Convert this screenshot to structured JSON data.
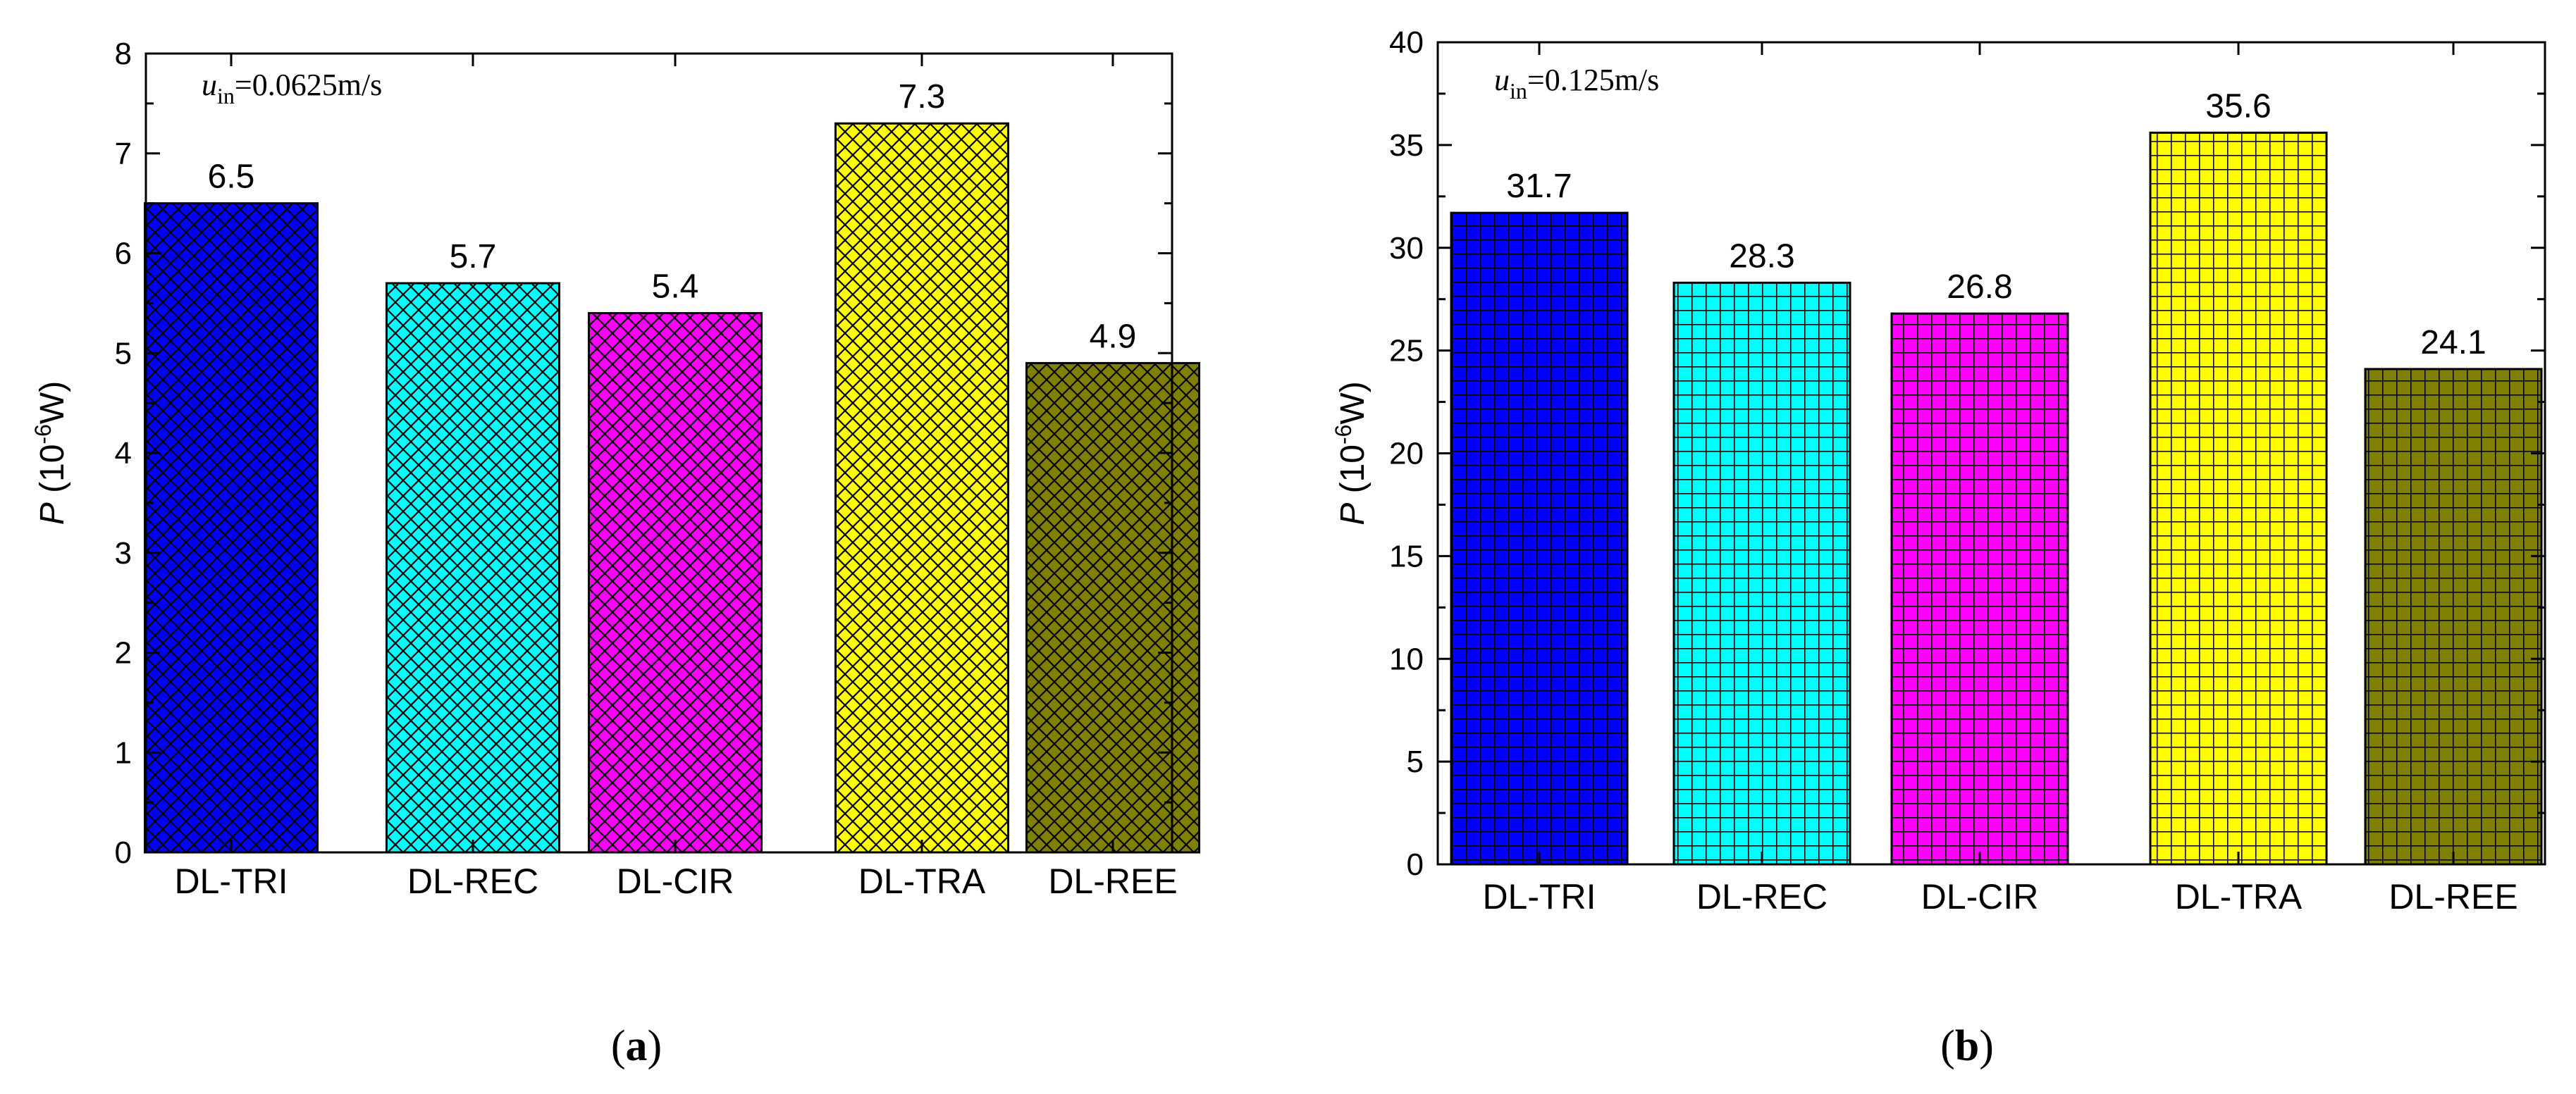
{
  "chart_data": [
    {
      "type": "bar",
      "panel_label": "a",
      "annotation": {
        "var": "u",
        "sub": "in",
        "rest": "=0.0625m/s"
      },
      "ylabel": {
        "symbol": "P",
        "text": " (10",
        "sup": "-6",
        "unit": "W)"
      },
      "ylim": [
        0,
        8
      ],
      "yticks": [
        "0",
        "1",
        "2",
        "3",
        "4",
        "5",
        "6",
        "7",
        "8"
      ],
      "pattern": "crosshatch-diagonal",
      "grid": false,
      "categories": [
        "DL-TRI",
        "DL-REC",
        "DL-CIR",
        "DL-TRA",
        "DL-REE"
      ],
      "values": [
        6.5,
        5.7,
        5.4,
        7.3,
        4.9
      ],
      "value_labels": [
        "6.5",
        "5.7",
        "5.4",
        "7.3",
        "4.9"
      ],
      "colors": [
        "#0000ff",
        "#00ffff",
        "#ff00ff",
        "#ffff00",
        "#808000"
      ]
    },
    {
      "type": "bar",
      "panel_label": "b",
      "annotation": {
        "var": "u",
        "sub": "in",
        "rest": "=0.125m/s"
      },
      "ylabel": {
        "symbol": "P",
        "text": " (10",
        "sup": "-6",
        "unit": "W)"
      },
      "ylim": [
        0,
        40
      ],
      "yticks": [
        "0",
        "5",
        "10",
        "15",
        "20",
        "25",
        "30",
        "35",
        "40"
      ],
      "pattern": "grid-square",
      "grid": false,
      "categories": [
        "DL-TRI",
        "DL-REC",
        "DL-CIR",
        "DL-TRA",
        "DL-REE"
      ],
      "values": [
        31.7,
        28.3,
        26.8,
        35.6,
        24.1
      ],
      "value_labels": [
        "31.7",
        "28.3",
        "26.8",
        "35.6",
        "24.1"
      ],
      "colors": [
        "#0000ff",
        "#00ffff",
        "#ff00ff",
        "#ffff00",
        "#808000"
      ]
    }
  ]
}
